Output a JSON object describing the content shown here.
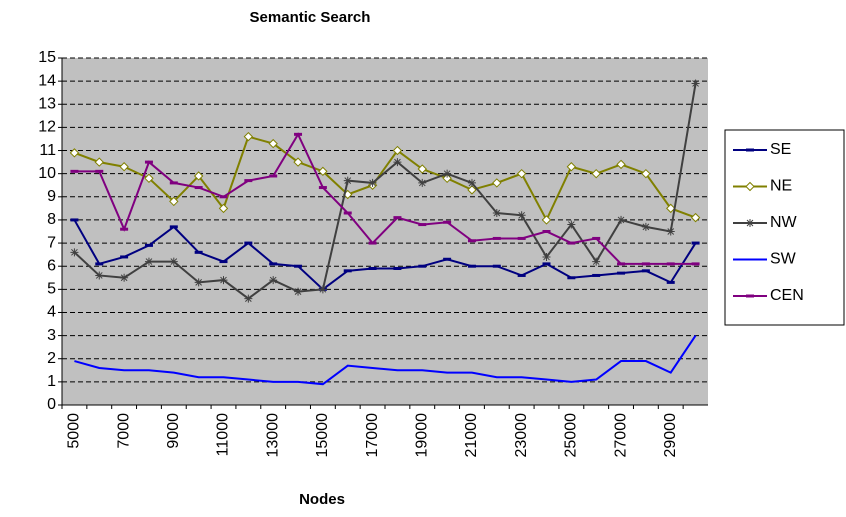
{
  "chart_data": {
    "type": "line",
    "title": "Semantic Search",
    "x_label": "Nodes",
    "categories": [
      5000,
      null,
      7000,
      null,
      9000,
      null,
      11000,
      null,
      13000,
      null,
      15000,
      null,
      17000,
      null,
      19000,
      null,
      21000,
      null,
      23000,
      null,
      25000,
      null,
      27000,
      null,
      29000,
      null
    ],
    "ylim": [
      0,
      15
    ],
    "yticks": [
      0,
      1,
      2,
      3,
      4,
      5,
      6,
      7,
      8,
      9,
      10,
      11,
      12,
      13,
      14,
      15
    ],
    "grid": true,
    "legend": "right",
    "series": [
      {
        "name": "SE",
        "color": "#000080",
        "marker": "dash",
        "values": [
          8.0,
          6.1,
          6.4,
          6.9,
          7.7,
          6.6,
          6.2,
          7.0,
          6.1,
          6.0,
          5.0,
          5.8,
          5.9,
          5.9,
          6.0,
          6.3,
          6.0,
          6.0,
          5.6,
          6.1,
          5.5,
          5.6,
          5.7,
          5.8,
          5.3,
          7.0
        ]
      },
      {
        "name": "NE",
        "color": "#808000",
        "marker": "diamond",
        "values": [
          10.9,
          10.5,
          10.3,
          9.8,
          8.8,
          9.9,
          8.5,
          11.6,
          11.3,
          10.5,
          10.1,
          9.1,
          9.5,
          11.0,
          10.2,
          9.8,
          9.3,
          9.6,
          10.0,
          8.0,
          10.3,
          10.0,
          10.4,
          10.0,
          8.5,
          8.1
        ]
      },
      {
        "name": "NW",
        "color": "#404040",
        "marker": "star",
        "values": [
          6.6,
          5.6,
          5.5,
          6.2,
          6.2,
          5.3,
          5.4,
          4.6,
          5.4,
          4.9,
          5.0,
          9.7,
          9.6,
          10.5,
          9.6,
          10.0,
          9.6,
          8.3,
          8.2,
          6.4,
          7.8,
          6.2,
          8.0,
          7.7,
          7.5,
          13.9
        ]
      },
      {
        "name": "SW",
        "color": "#0000ff",
        "marker": "none",
        "values": [
          1.9,
          1.6,
          1.5,
          1.5,
          1.4,
          1.2,
          1.2,
          1.1,
          1.0,
          1.0,
          0.9,
          1.7,
          1.6,
          1.5,
          1.5,
          1.4,
          1.4,
          1.2,
          1.2,
          1.1,
          1.0,
          1.1,
          1.9,
          1.9,
          1.4,
          3.0
        ]
      },
      {
        "name": "CEN",
        "color": "#800080",
        "marker": "dash",
        "values": [
          10.1,
          10.1,
          7.6,
          10.5,
          9.6,
          9.4,
          9.0,
          9.7,
          9.9,
          11.7,
          9.4,
          8.3,
          7.0,
          8.1,
          7.8,
          7.9,
          7.1,
          7.2,
          7.2,
          7.5,
          7.0,
          7.2,
          6.1,
          6.1,
          6.1,
          6.1
        ]
      }
    ]
  }
}
